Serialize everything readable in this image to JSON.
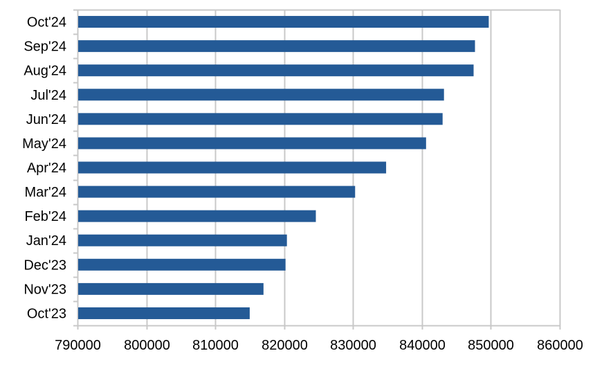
{
  "chart_data": {
    "type": "bar",
    "orientation": "horizontal",
    "categories": [
      "Oct'23",
      "Nov'23",
      "Dec'23",
      "Jan'24",
      "Feb'24",
      "Mar'24",
      "Apr'24",
      "May'24",
      "Jun'24",
      "Jul'24",
      "Aug'24",
      "Sep'24",
      "Oct'24"
    ],
    "values": [
      815000,
      817000,
      820200,
      820400,
      824600,
      830300,
      834800,
      840600,
      843000,
      843200,
      847500,
      847700,
      849700
    ],
    "title": "",
    "xlabel": "",
    "ylabel": "",
    "xlim": [
      790000,
      860000
    ],
    "x_ticks": [
      790000,
      800000,
      810000,
      820000,
      830000,
      840000,
      850000,
      860000
    ],
    "x_tick_labels": [
      "790000",
      "800000",
      "810000",
      "820000",
      "830000",
      "840000",
      "850000",
      "860000"
    ],
    "grid": "vertical",
    "legend": "none",
    "bar_color": "#245A96",
    "grid_color": "#C8C8C8"
  }
}
